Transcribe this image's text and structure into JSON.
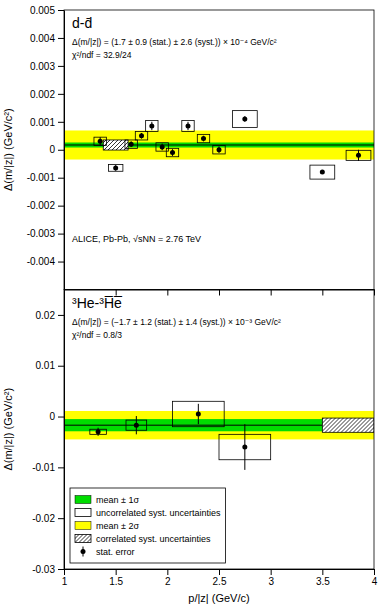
{
  "chart_data": [
    {
      "type": "errorbar",
      "title": "d-d̄",
      "annotations": [
        "Δ(m/|z|) = (1.7 ± 0.9 (stat.) ± 2.6 (syst.)) × 10⁻⁴ GeV/c²",
        "χ²/ndf = 32.9/24"
      ],
      "caption": "ALICE, Pb-Pb, √sNN = 2.76 TeV",
      "y_label": "Δ(m/|z|) (GeV/c²)",
      "xlim": [
        1.0,
        4.0
      ],
      "xticks": [
        1.0,
        1.5,
        2.0,
        2.5,
        3.0,
        3.5,
        4.0
      ],
      "ylim": [
        -0.005,
        0.005
      ],
      "yticks": [
        -0.004,
        -0.003,
        -0.002,
        -0.001,
        0.0,
        0.001,
        0.002,
        0.003,
        0.004,
        0.005
      ],
      "tick_labels": "y",
      "series": [
        {
          "type": "band",
          "color": "#00dd00",
          "values": [
            8e-05,
            0.00026
          ]
        },
        {
          "type": "band",
          "color": "#ffff00",
          "values": [
            -0.00035,
            0.00069
          ]
        },
        {
          "type": "hline",
          "values": [
            0.00017
          ]
        },
        {
          "type": "hatched_box",
          "x": [
            1.5
          ],
          "values": [
            0.00017
          ],
          "half_width": [
            0.12
          ],
          "half_height": [
            0.00018
          ]
        },
        {
          "type": "box",
          "x": [
            1.35,
            1.5,
            1.65,
            1.75,
            1.85,
            1.95,
            2.05,
            2.2,
            2.35,
            2.5,
            2.75,
            3.5,
            3.85
          ],
          "values": [
            0.0003,
            -0.00065,
            0.0002,
            0.0005,
            0.00085,
            0.0001,
            -0.0001,
            0.00085,
            0.0004,
            0.0,
            0.0011,
            -0.0008,
            -0.0002
          ],
          "half_width": [
            0.06,
            0.07,
            0.06,
            0.06,
            0.06,
            0.06,
            0.06,
            0.06,
            0.06,
            0.06,
            0.12,
            0.12,
            0.12
          ],
          "half_height": [
            0.00015,
            0.00012,
            0.00015,
            0.00015,
            0.0002,
            0.00015,
            0.00015,
            0.0002,
            0.00015,
            0.00015,
            0.0003,
            0.00025,
            0.00018
          ]
        },
        {
          "type": "errorbar",
          "x": [
            1.35,
            1.5,
            1.65,
            1.75,
            1.85,
            1.95,
            2.05,
            2.2,
            2.35,
            2.5,
            2.75,
            3.5,
            3.85
          ],
          "values": [
            0.0003,
            -0.00065,
            0.0002,
            0.0005,
            0.00085,
            0.0001,
            -0.0001,
            0.00085,
            0.0004,
            0.0,
            0.0011,
            -0.0008,
            -0.0002
          ],
          "errors": [
            0.00015,
            0.0001,
            0.0001,
            0.0001,
            0.00015,
            0.00012,
            0.00012,
            0.00015,
            0.0001,
            0.00012,
            0.0001,
            5e-05,
            0.0002
          ]
        }
      ]
    },
    {
      "type": "errorbar",
      "title": "³He-³H̅e̅",
      "annotations": [
        "Δ(m/|z|) = (−1.7 ± 1.2 (stat.) ± 1.4 (syst.)) × 10⁻³ GeV/c²",
        "χ²/ndf = 0.8/3"
      ],
      "x_label": "p/|z| (GeV/c)",
      "y_label": "Δ(m/|z|) (GeV/c²)",
      "xlim": [
        1.0,
        4.0
      ],
      "xticks": [
        1.0,
        1.5,
        2.0,
        2.5,
        3.0,
        3.5,
        4.0
      ],
      "ylim": [
        -0.03,
        0.025
      ],
      "yticks": [
        -0.03,
        -0.02,
        -0.01,
        0.0,
        0.01,
        0.02
      ],
      "legend": "lower left",
      "series": [
        {
          "name": "mean ± 1σ",
          "type": "band",
          "color": "#00dd00",
          "values": [
            -0.0029,
            -0.0005
          ]
        },
        {
          "name": "uncorrelated syst. uncertainties",
          "type": "box",
          "x": [
            1.33,
            1.7,
            2.3,
            2.75
          ],
          "values": [
            -0.003,
            -0.0017,
            0.0005,
            -0.006
          ],
          "half_width": [
            0.08,
            0.1,
            0.25,
            0.25
          ],
          "half_height": [
            0.0005,
            0.001,
            0.0025,
            0.0025
          ]
        },
        {
          "name": "mean ± 2σ",
          "type": "band",
          "color": "#ffff00",
          "values": [
            -0.0045,
            0.0011
          ]
        },
        {
          "name": "correlated syst. uncertainties",
          "type": "hatched_box",
          "x": [
            3.75
          ],
          "values": [
            -0.0017
          ],
          "half_width": [
            0.25
          ],
          "half_height": [
            0.0014
          ]
        },
        {
          "name": "stat. error",
          "type": "errorbar",
          "x": [
            1.33,
            1.7,
            2.3,
            2.75
          ],
          "values": [
            -0.003,
            -0.0017,
            0.0005,
            -0.006
          ],
          "errors": [
            0.0008,
            0.0018,
            0.002,
            0.0045
          ]
        },
        {
          "type": "hline",
          "values": [
            -0.0017
          ]
        }
      ]
    }
  ]
}
